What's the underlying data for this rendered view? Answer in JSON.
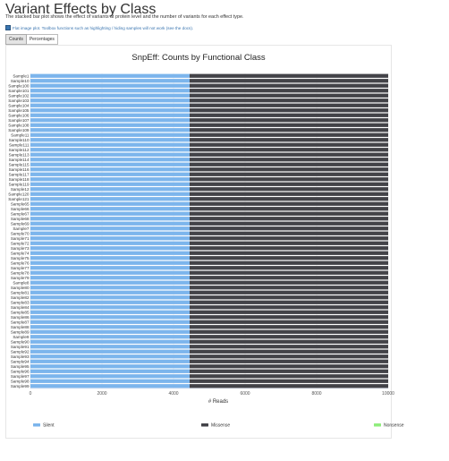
{
  "page": {
    "title": "Variant Effects by Class",
    "description": "The stacked bar plot shows the effect of variants at protein level and the number of variants for each effect type.",
    "flat_notice": "Flat image plot. Toolbox functions such as highlighting / hiding samples will not work (see the docs).",
    "tabs": [
      {
        "label": "Counts",
        "active": true
      },
      {
        "label": "Percentages",
        "active": false
      }
    ]
  },
  "chart_data": {
    "type": "bar",
    "orientation": "horizontal",
    "stacked": true,
    "title": "SnpEff: Counts by Functional Class",
    "xlabel": "# Reads",
    "ylabel": "",
    "xlim": [
      0,
      10000
    ],
    "xticks": [
      "0",
      "2000",
      "4000",
      "6000",
      "8000",
      "10000"
    ],
    "grid": true,
    "legend_position": "bottom",
    "categories": [
      "Sample1",
      "Sample10",
      "Sample100",
      "Sample101",
      "Sample102",
      "Sample103",
      "Sample104",
      "Sample105",
      "Sample106",
      "Sample107",
      "Sample108",
      "Sample109",
      "Sample11",
      "Sample110",
      "Sample111",
      "Sample112",
      "Sample113",
      "Sample114",
      "Sample115",
      "Sample116",
      "Sample117",
      "Sample118",
      "Sample119",
      "Sample12",
      "Sample120",
      "Sample121",
      "Sample65",
      "Sample66",
      "Sample67",
      "Sample68",
      "Sample69",
      "Sample7",
      "Sample70",
      "Sample71",
      "Sample72",
      "Sample73",
      "Sample74",
      "Sample75",
      "Sample76",
      "Sample77",
      "Sample78",
      "Sample79",
      "Sample8",
      "Sample80",
      "Sample81",
      "Sample82",
      "Sample83",
      "Sample84",
      "Sample85",
      "Sample86",
      "Sample87",
      "Sample88",
      "Sample89",
      "Sample9",
      "Sample90",
      "Sample91",
      "Sample92",
      "Sample93",
      "Sample94",
      "Sample95",
      "Sample96",
      "Sample97",
      "Sample98",
      "Sample99"
    ],
    "series": [
      {
        "name": "Silent",
        "color": "#7cb5ec",
        "values": [
          4450,
          4450,
          4450,
          4450,
          4450,
          4450,
          4450,
          4450,
          4450,
          4450,
          4450,
          4450,
          4450,
          4450,
          4450,
          4450,
          4450,
          4450,
          4450,
          4450,
          4450,
          4450,
          4450,
          4450,
          4450,
          4450,
          4450,
          4450,
          4450,
          4450,
          4450,
          4450,
          4450,
          4450,
          4450,
          4450,
          4450,
          4450,
          4450,
          4450,
          4450,
          4450,
          4450,
          4450,
          4450,
          4450,
          4450,
          4450,
          4450,
          4450,
          4450,
          4450,
          4450,
          4450,
          4450,
          4450,
          4450,
          4450,
          4450,
          4450,
          4450,
          4450,
          4450,
          4450
        ]
      },
      {
        "name": "Missense",
        "color": "#434348",
        "values": [
          5750,
          5750,
          5750,
          5750,
          5750,
          5750,
          5750,
          5750,
          5750,
          5750,
          5750,
          5750,
          5750,
          5750,
          5750,
          5750,
          5750,
          5750,
          5750,
          5750,
          5750,
          5750,
          5750,
          5750,
          5750,
          5750,
          5750,
          5750,
          5750,
          5750,
          5750,
          5750,
          5750,
          5750,
          5750,
          5750,
          5750,
          5750,
          5750,
          5750,
          5750,
          5750,
          5750,
          5750,
          5750,
          5750,
          5750,
          5750,
          5750,
          5750,
          5750,
          5750,
          5750,
          5750,
          5750,
          5750,
          5750,
          5750,
          5750,
          5750,
          5750,
          5750,
          5750,
          5750
        ]
      },
      {
        "name": "Nonsense",
        "color": "#90ed7d",
        "values": [
          200,
          200,
          200,
          200,
          200,
          200,
          200,
          200,
          200,
          200,
          200,
          200,
          200,
          200,
          200,
          200,
          200,
          200,
          200,
          200,
          200,
          200,
          200,
          200,
          200,
          200,
          200,
          200,
          200,
          200,
          200,
          200,
          200,
          200,
          200,
          200,
          200,
          200,
          200,
          200,
          200,
          200,
          200,
          200,
          200,
          200,
          200,
          200,
          200,
          200,
          200,
          200,
          200,
          200,
          200,
          200,
          200,
          200,
          200,
          200,
          200,
          200,
          200,
          200
        ]
      }
    ]
  }
}
